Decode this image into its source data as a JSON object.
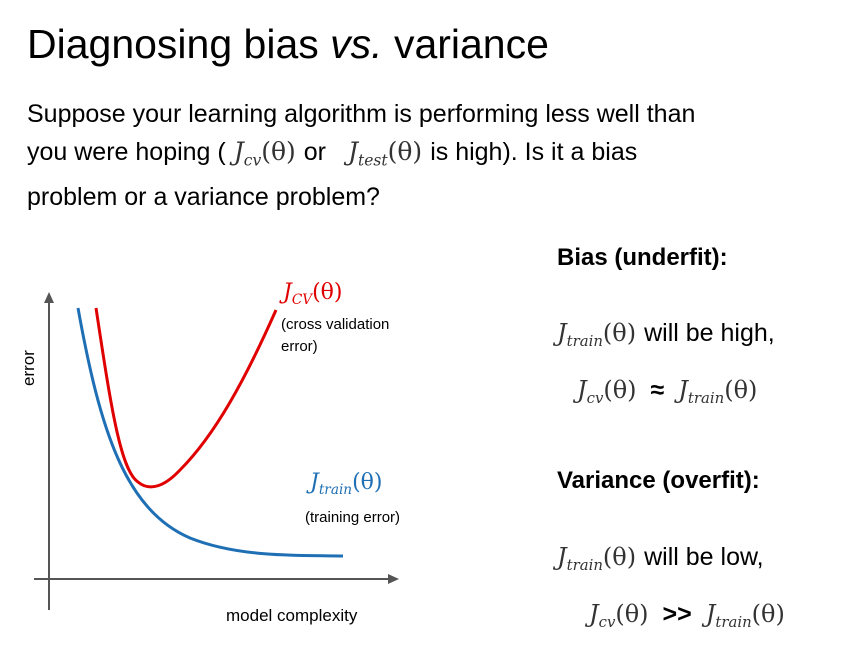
{
  "slide": {
    "title_part1": "Diagnosing bias ",
    "title_vs": "vs.",
    "title_part2": " variance",
    "intro": {
      "line1": "Suppose your learning algorithm is performing less well than",
      "line2_a": "you were hoping (",
      "line2_or": "or",
      "line2_b": "is high).  Is it a bias",
      "line3": "problem or a variance problem?"
    },
    "math": {
      "J": "J",
      "theta": "(θ)",
      "cv": "cv",
      "test": "test",
      "train": "train",
      "CV": "CV"
    },
    "plot": {
      "y_label": "error",
      "x_label": "model complexity",
      "cv_desc_line1": "(cross validation",
      "cv_desc_line2": "error)",
      "train_desc": "(training error)"
    },
    "bias": {
      "heading": "Bias (underfit):",
      "line1_text": "will be high,",
      "approx": "≈"
    },
    "variance": {
      "heading": "Variance (overfit):",
      "line1_text": "will be low,",
      "gg": ">>"
    }
  },
  "colors": {
    "cv_curve": "#e00000",
    "train_curve": "#1f6fb5",
    "axis": "#555555"
  }
}
